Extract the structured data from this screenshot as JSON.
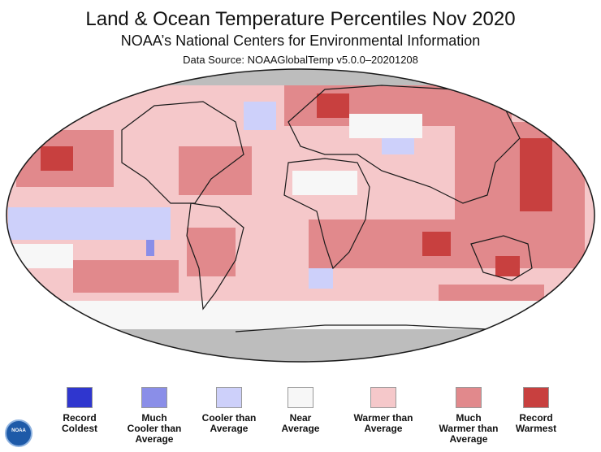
{
  "header": {
    "title": "Land & Ocean Temperature Percentiles Nov 2020",
    "subtitle": "NOAA’s National Centers for Environmental Information",
    "source": "Data Source: NOAAGlobalTemp v5.0.0–20201208"
  },
  "legend": [
    {
      "label": "Record\nColdest",
      "color": "#2f36cf"
    },
    {
      "label": "Much\nCooler than\nAverage",
      "color": "#8a8ee8"
    },
    {
      "label": "Cooler than\nAverage",
      "color": "#cdd0fa"
    },
    {
      "label": "Near\nAverage",
      "color": "#f7f7f7"
    },
    {
      "label": "Warmer than\nAverage",
      "color": "#f5c8ca"
    },
    {
      "label": "Much\nWarmer than\nAverage",
      "color": "#e1898c"
    },
    {
      "label": "Record\nWarmest",
      "color": "#c8403f"
    }
  ],
  "logo": {
    "text": "NOAA"
  },
  "colors": {
    "missing": "#bdbdbd",
    "coast": "#1a1a1a"
  }
}
